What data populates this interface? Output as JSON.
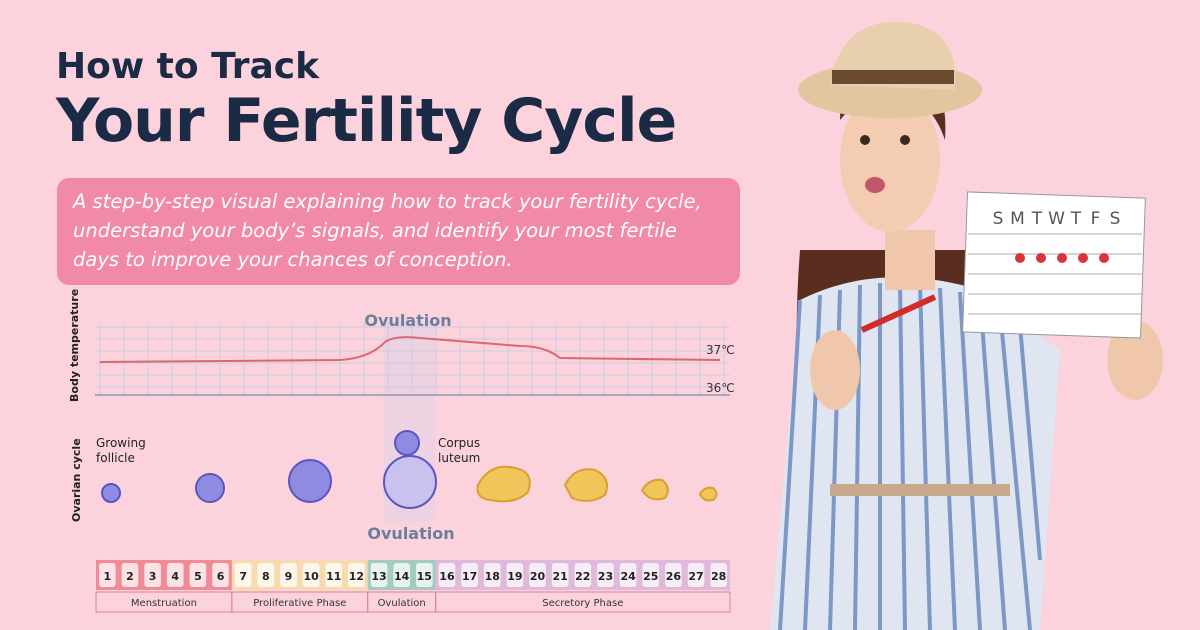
{
  "header": {
    "kicker": "How to Track",
    "title": "Your Fertility Cycle"
  },
  "description": "A step-by-step visual explaining how to track your fertility cycle, understand your body’s signals, and identify your most fertile days to improve your chances of conception.",
  "temperature_chart": {
    "label": "Body temperature",
    "ovulation_label": "Ovulation",
    "high_label": "37℃",
    "low_label": "36℃"
  },
  "ovarian_cycle": {
    "label": "Ovarian cycle",
    "growing_follicle": "Growing follicle",
    "corpus_luteum": "Corpus luteum",
    "ovulation_label": "Ovulation"
  },
  "cycle_strip": {
    "days": [
      1,
      2,
      3,
      4,
      5,
      6,
      7,
      8,
      9,
      10,
      11,
      12,
      13,
      14,
      15,
      16,
      17,
      18,
      19,
      20,
      21,
      22,
      23,
      24,
      25,
      26,
      27,
      28
    ],
    "phases": [
      "Menstruation",
      "Proliferative Phase",
      "Ovulation",
      "Secretory Phase"
    ]
  },
  "calendar": {
    "weekdays": [
      "S",
      "M",
      "T",
      "W",
      "T",
      "F",
      "S"
    ]
  }
}
